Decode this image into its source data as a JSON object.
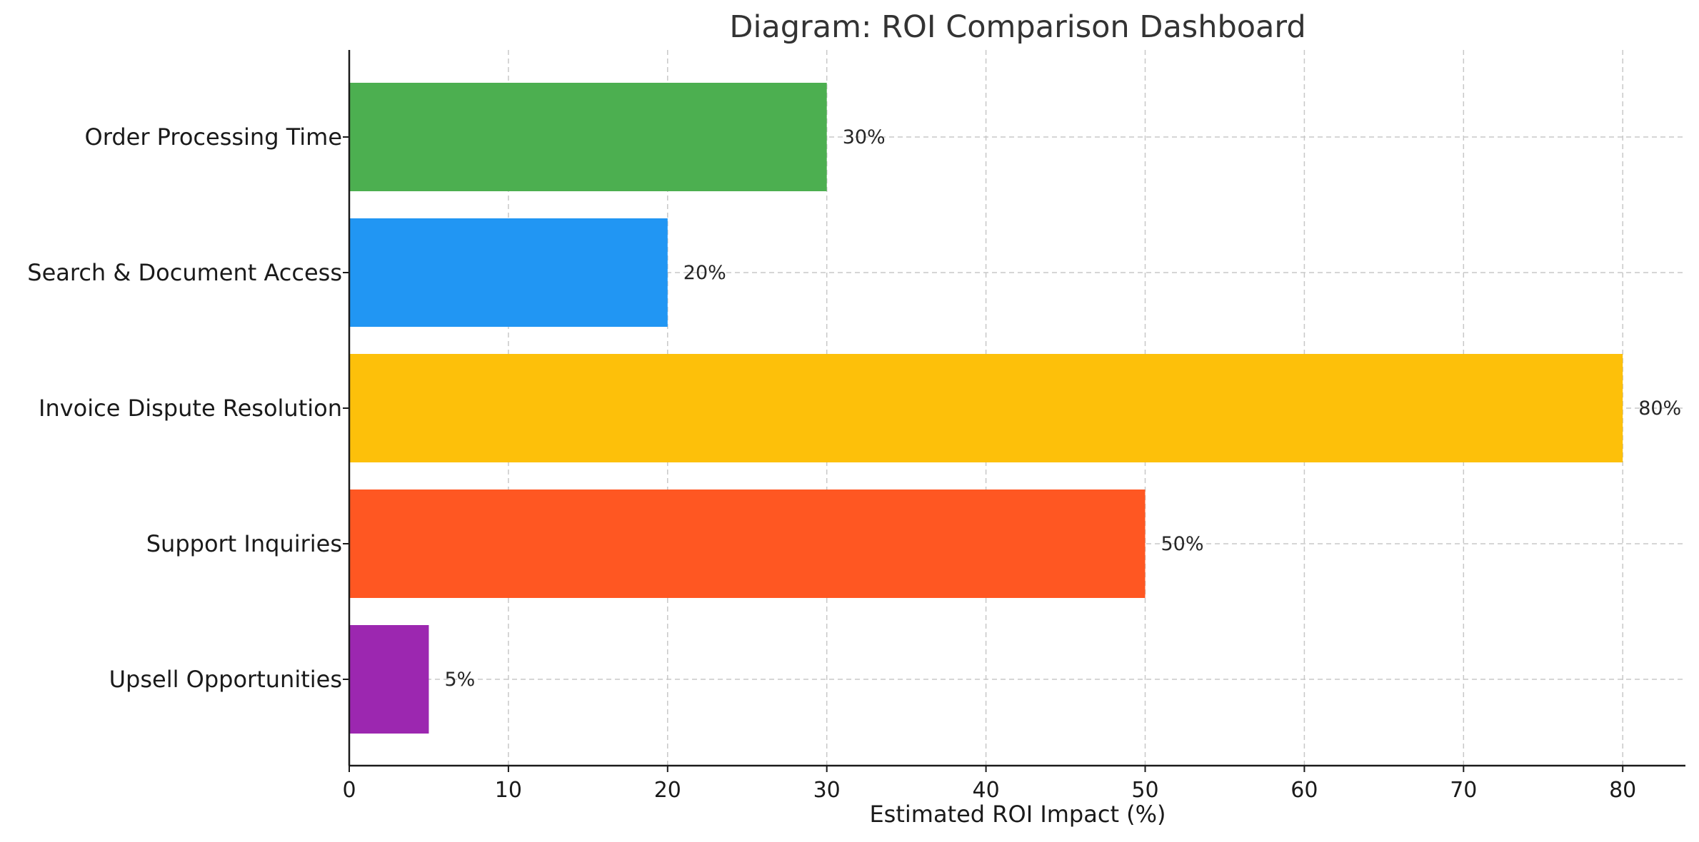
{
  "chart_data": {
    "type": "bar",
    "orientation": "horizontal",
    "title": "Diagram: ROI Comparison Dashboard",
    "xlabel": "Estimated ROI Impact (%)",
    "ylabel": "",
    "xlim": [
      0,
      84
    ],
    "xticks": [
      0,
      10,
      20,
      30,
      40,
      50,
      60,
      70,
      80
    ],
    "grid": true,
    "legend": "none",
    "categories": [
      "Order Processing Time",
      "Search & Document Access",
      "Invoice Dispute Resolution",
      "Support Inquiries",
      "Upsell Opportunities"
    ],
    "values": [
      30,
      20,
      80,
      50,
      5
    ],
    "value_labels": [
      "30%",
      "20%",
      "80%",
      "50%",
      "5%"
    ],
    "colors": [
      "#4caf50",
      "#2196f3",
      "#fdc00a",
      "#ff5722",
      "#9c27b0"
    ]
  }
}
